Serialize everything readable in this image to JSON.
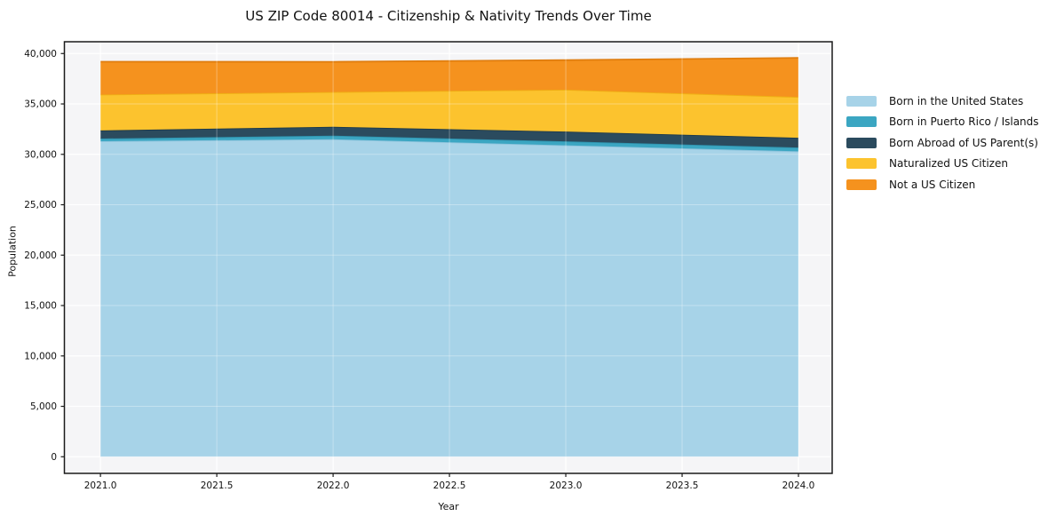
{
  "figure": {
    "title": "US ZIP Code 80014 - Citizenship & Nativity Trends Over Time",
    "xlabel": "Year",
    "ylabel": "Population"
  },
  "axes": {
    "xlim": [
      2020.845,
      2024.145
    ],
    "ylim": [
      -1650,
      41170
    ],
    "x_tick_values": [
      2021.0,
      2021.5,
      2022.0,
      2022.5,
      2023.0,
      2023.5,
      2024.0
    ],
    "x_tick_labels": [
      "2021.0",
      "2021.5",
      "2022.0",
      "2022.5",
      "2023.0",
      "2023.5",
      "2024.0"
    ],
    "y_tick_values": [
      0,
      5000,
      10000,
      15000,
      20000,
      25000,
      30000,
      35000,
      40000
    ],
    "y_tick_labels": [
      "0",
      "5,000",
      "10,000",
      "15,000",
      "20,000",
      "25,000",
      "30,000",
      "35,000",
      "40,000"
    ],
    "plot_bg_color": "#f5f5f7",
    "spine_color": "#1a1a1a",
    "grid_under_color": "#ffffff",
    "grid_over_color": "rgba(255,255,255,0.32)",
    "tick_label_color": "#111111"
  },
  "chart_data": {
    "type": "area",
    "stacked": true,
    "title": "US ZIP Code 80014 - Citizenship & Nativity Trends Over Time",
    "xlabel": "Year",
    "ylabel": "Population",
    "x": [
      2021,
      2022,
      2023,
      2024
    ],
    "series": [
      {
        "name": "Born in the United States",
        "color": "#a7d3e8",
        "edge": "#8cc3dc",
        "values": [
          31300,
          31500,
          30900,
          30300
        ]
      },
      {
        "name": "Born in Puerto Rico / Islands",
        "color": "#3ba6c2",
        "edge": "#2f93ae",
        "values": [
          270,
          360,
          390,
          380
        ]
      },
      {
        "name": "Born Abroad of US Parent(s)",
        "color": "#2b4b5e",
        "edge": "#1e3a4a",
        "values": [
          800,
          880,
          970,
          970
        ]
      },
      {
        "name": "Naturalized US Citizen",
        "color": "#fcc32e",
        "edge": "#efaf14",
        "values": [
          3560,
          3440,
          4150,
          4040
        ]
      },
      {
        "name": "Not a US Citizen",
        "color": "#f5921e",
        "edge": "#e07d0e",
        "values": [
          3260,
          3000,
          2940,
          3880
        ]
      }
    ],
    "legend_position": "right-outside",
    "grid": true
  }
}
